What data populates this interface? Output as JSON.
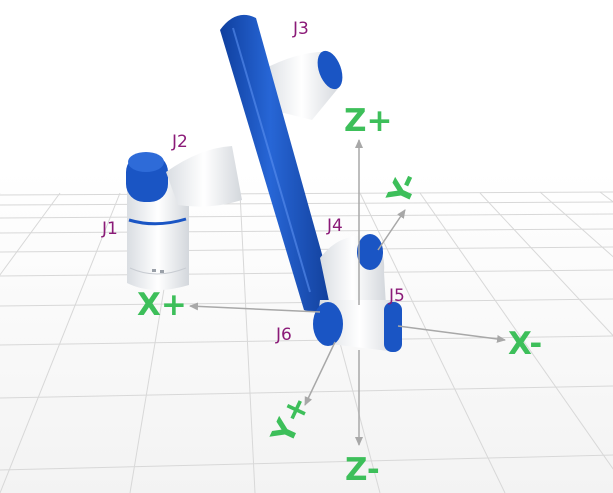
{
  "joint_labels": {
    "j1": "J1",
    "j2": "J2",
    "j3": "J3",
    "j4": "J4",
    "j5": "J5",
    "j6": "J6"
  },
  "axis_labels": {
    "z_plus": "Z+",
    "z_minus": "Z-",
    "x_plus": "X+",
    "x_minus": "X-",
    "y_plus": "Y+",
    "y_minus": "Y-"
  },
  "colors": {
    "robot_blue": "#1a55c4",
    "robot_white": "#f4f6f8",
    "axis_green": "#3dbf5a",
    "joint_label": "#8b1a78",
    "arrow_gray": "#a8a8a8",
    "grid": "#d8d8d8"
  }
}
